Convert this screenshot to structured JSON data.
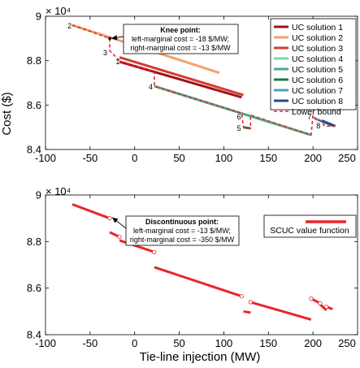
{
  "chart_data": [
    {
      "type": "line",
      "y_multiplier": "× 10⁴",
      "ylabel": "Cost ($)",
      "xlabel": "",
      "xlim": [
        -100,
        250
      ],
      "ylim": [
        84000,
        90000
      ],
      "xticks": [
        -100,
        -50,
        0,
        50,
        100,
        150,
        200,
        250
      ],
      "yticks": [
        84000,
        86000,
        88000,
        90000
      ],
      "ytick_labels": [
        "8.4",
        "8.6",
        "8.8",
        "9"
      ],
      "legend_position": "top-right",
      "series": [
        {
          "name": "UC solution 1",
          "color": "#a1121c",
          "segments": [
            [
              [
                -17,
                87950
              ],
              [
                120,
                86350
              ]
            ]
          ]
        },
        {
          "name": "UC solution 2",
          "color": "#f4a06c",
          "segments": [
            [
              [
                -70,
                89600
              ],
              [
                95,
                87450
              ]
            ]
          ]
        },
        {
          "name": "UC solution 3",
          "color": "#d63b2e",
          "segments": [
            [
              [
                -17,
                88150
              ],
              [
                122,
                86450
              ]
            ]
          ]
        },
        {
          "name": "UC solution 4",
          "color": "#7fd3b5",
          "segments": [
            [
              [
                122,
                85600
              ],
              [
                150,
                85250
              ]
            ]
          ]
        },
        {
          "name": "UC solution 5",
          "color": "#4ea88a",
          "segments": [
            [
              [
                22,
                86850
              ],
              [
                198,
                84650
              ]
            ]
          ]
        },
        {
          "name": "UC solution 6",
          "color": "#1f7a3c",
          "segments": [
            [
              [
                122,
                85000
              ],
              [
                130,
                84950
              ]
            ]
          ]
        },
        {
          "name": "UC solution 7",
          "color": "#4aa0bf",
          "segments": [
            [
              [
                202,
                85400
              ],
              [
                223,
                85050
              ]
            ]
          ]
        },
        {
          "name": "UC solution 8",
          "color": "#1f4e8c",
          "segments": [
            [
              [
                210,
                85300
              ],
              [
                225,
                85050
              ]
            ]
          ]
        },
        {
          "name": "Lower bound",
          "color": "#e8262c",
          "dashed": true,
          "segments": [
            [
              [
                -70,
                89600
              ],
              [
                -28,
                89000
              ],
              [
                -28,
                88450
              ],
              [
                -17,
                88000
              ],
              [
                -17,
                87950
              ],
              [
                22,
                87500
              ],
              [
                22,
                86850
              ],
              [
                120,
                85630
              ],
              [
                122,
                85000
              ],
              [
                130,
                84950
              ],
              [
                130,
                85550
              ],
              [
                198,
                84650
              ],
              [
                200,
                85550
              ],
              [
                202,
                85400
              ],
              [
                210,
                85250
              ],
              [
                213,
                85050
              ],
              [
                225,
                85050
              ]
            ]
          ]
        }
      ],
      "point_labels": [
        {
          "text": "1",
          "x": -19,
          "y": 87850
        },
        {
          "text": "2",
          "x": -73,
          "y": 89450
        },
        {
          "text": "3",
          "x": -33,
          "y": 88250
        },
        {
          "text": "4",
          "x": 18,
          "y": 86700
        },
        {
          "text": "5",
          "x": 117,
          "y": 84850
        },
        {
          "text": "6",
          "x": 117,
          "y": 85350
        },
        {
          "text": "7",
          "x": 196,
          "y": 85350
        },
        {
          "text": "8",
          "x": 206,
          "y": 84950
        }
      ],
      "annotation": {
        "title": "Knee point:",
        "line1": "left-marginal cost = -18 $/MW;",
        "line2": "right-marginal cost = -13 $/MW",
        "target_x": -28,
        "target_y": 89000
      },
      "knee_marker": {
        "x": -28,
        "y": 89000
      }
    },
    {
      "type": "line",
      "y_multiplier": "× 10⁴",
      "ylabel": "",
      "xlabel": "Tie-line injection (MW)",
      "xlim": [
        -100,
        250
      ],
      "ylim": [
        84000,
        90000
      ],
      "xticks": [
        -100,
        -50,
        0,
        50,
        100,
        150,
        200,
        250
      ],
      "yticks": [
        84000,
        86000,
        88000,
        90000
      ],
      "ytick_labels": [
        "8.4",
        "8.6",
        "8.8",
        "9"
      ],
      "legend_position": "top-right",
      "series": [
        {
          "name": "SCUC value function",
          "color": "#e8262c",
          "segments": [
            [
              [
                -70,
                89600
              ],
              [
                -28,
                89000
              ]
            ],
            [
              [
                -28,
                88400
              ],
              [
                -17,
                88200
              ]
            ],
            [
              [
                -17,
                88050
              ],
              [
                22,
                87550
              ]
            ],
            [
              [
                22,
                86900
              ],
              [
                120,
                85650
              ]
            ],
            [
              [
                122,
                85000
              ],
              [
                130,
                84950
              ]
            ],
            [
              [
                130,
                85400
              ],
              [
                198,
                84650
              ]
            ],
            [
              [
                198,
                85550
              ],
              [
                208,
                85350
              ]
            ],
            [
              [
                208,
                85300
              ],
              [
                215,
                85050
              ]
            ],
            [
              [
                215,
                85200
              ],
              [
                222,
                85100
              ]
            ]
          ]
        }
      ],
      "open_points": [
        {
          "x": -28,
          "y": 89000
        },
        {
          "x": -17,
          "y": 88200
        },
        {
          "x": 22,
          "y": 87550
        },
        {
          "x": 120,
          "y": 85650
        },
        {
          "x": 130,
          "y": 85400
        },
        {
          "x": 198,
          "y": 85550
        },
        {
          "x": 208,
          "y": 85350
        },
        {
          "x": 215,
          "y": 85200
        }
      ],
      "annotation": {
        "title": "Discontinuous point:",
        "line1": "left-marginal cost = -13 $/MW;",
        "line2": "right-marginal cost = -350 $/MW",
        "target_x": -28,
        "target_y": 89000
      }
    }
  ]
}
